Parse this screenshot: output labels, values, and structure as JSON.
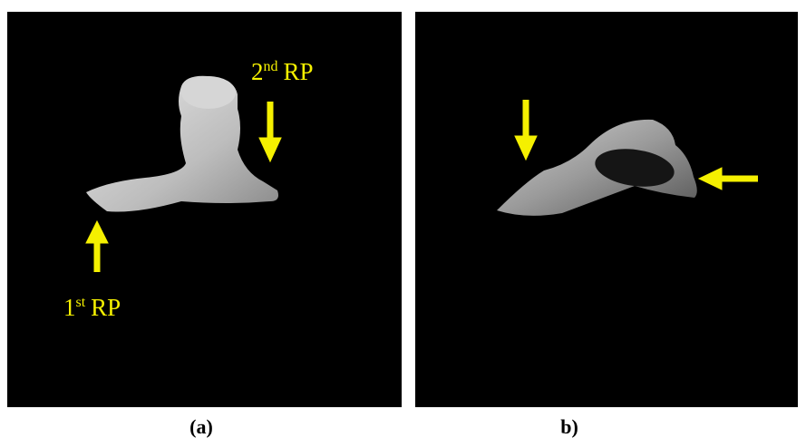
{
  "panels": [
    {
      "label": "(a)",
      "annotations": [
        {
          "ordinal": "2",
          "suffix": "nd",
          "text": "RP"
        },
        {
          "ordinal": "1",
          "suffix": "st",
          "text": "RP"
        }
      ]
    },
    {
      "label": "b)"
    }
  ]
}
